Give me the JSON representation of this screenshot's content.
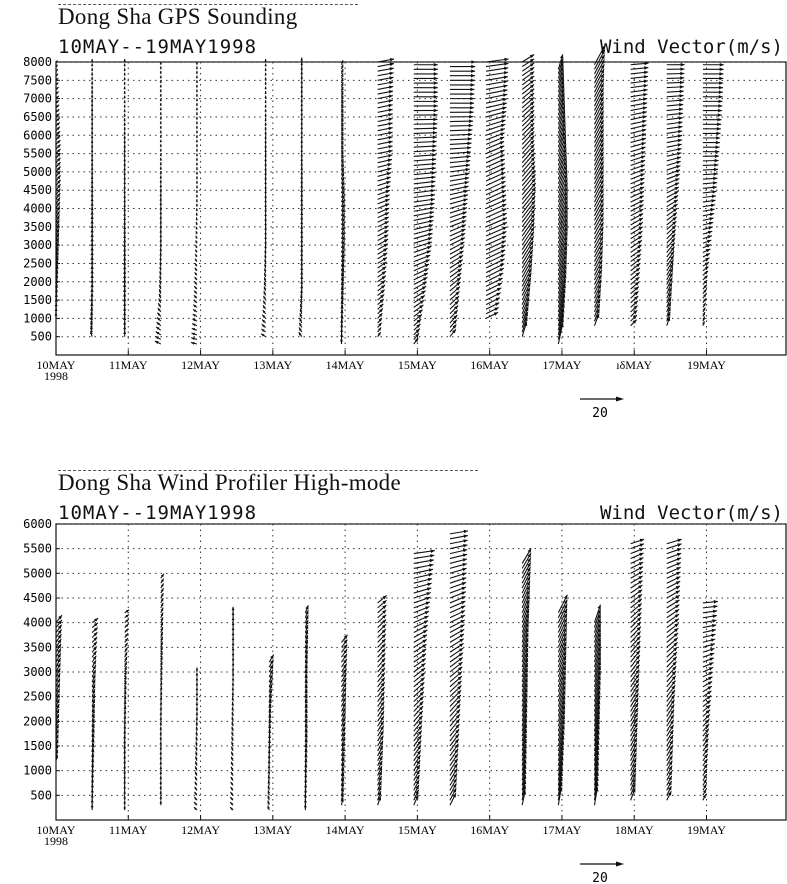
{
  "chart_data": [
    {
      "type": "vector-wind-profile",
      "title": "Dong Sha GPS Sounding",
      "subtitle": "10MAY--19MAY1998",
      "units_label": "Wind Vector(m/s)",
      "ylim": [
        0,
        8000
      ],
      "yticks": [
        "500",
        "1000",
        "1500",
        "2000",
        "2500",
        "3000",
        "3500",
        "4000",
        "4500",
        "5000",
        "5500",
        "6000",
        "6500",
        "7000",
        "7500",
        "8000"
      ],
      "xlim": [
        0,
        10.1
      ],
      "xticks": [
        {
          "day": 0,
          "label": "10MAY",
          "sublabel": "1998"
        },
        {
          "day": 1,
          "label": "11MAY"
        },
        {
          "day": 2,
          "label": "12MAY"
        },
        {
          "day": 3,
          "label": "13MAY"
        },
        {
          "day": 4,
          "label": "14MAY"
        },
        {
          "day": 5,
          "label": "15MAY"
        },
        {
          "day": 6,
          "label": "16MAY"
        },
        {
          "day": 7,
          "label": "17MAY"
        },
        {
          "day": 8,
          "label": "ıδMAY"
        },
        {
          "day": 9,
          "label": "19MAY"
        }
      ],
      "reference_vector": {
        "label": "20",
        "speed": 20
      },
      "profiles": [
        {
          "t": 0.0,
          "zmin": 1000,
          "zmax": 8000,
          "u": [
            0,
            1,
            2,
            3,
            3,
            2,
            1
          ],
          "v": [
            4,
            5,
            5,
            4,
            3,
            2,
            1
          ]
        },
        {
          "t": 0.5,
          "zmin": 500,
          "zmax": 8000,
          "u": [
            -1,
            0,
            0,
            0,
            0,
            0,
            0
          ],
          "v": [
            4,
            5,
            5,
            4,
            3,
            3,
            2
          ]
        },
        {
          "t": 0.95,
          "zmin": 500,
          "zmax": 8000,
          "u": [
            0,
            0,
            0,
            0,
            0,
            0,
            0
          ],
          "v": [
            4,
            5,
            4,
            3,
            3,
            2,
            2
          ]
        },
        {
          "t": 1.45,
          "zmin": 300,
          "zmax": 8000,
          "u": [
            -4,
            -1,
            0,
            0,
            0,
            0,
            0
          ],
          "v": [
            2,
            3,
            3,
            3,
            2,
            2,
            2
          ]
        },
        {
          "t": 1.95,
          "zmin": 300,
          "zmax": 8000,
          "u": [
            -4,
            -2,
            -1,
            0,
            0,
            0,
            0
          ],
          "v": [
            1,
            2,
            2,
            2,
            2,
            2,
            2
          ]
        },
        {
          "t": 2.9,
          "zmin": 500,
          "zmax": 8000,
          "u": [
            -3,
            -1,
            0,
            0,
            0,
            0,
            0
          ],
          "v": [
            2,
            3,
            3,
            3,
            3,
            2,
            2
          ]
        },
        {
          "t": 3.4,
          "zmin": 500,
          "zmax": 8000,
          "u": [
            -2,
            0,
            0,
            0,
            0,
            0,
            0
          ],
          "v": [
            3,
            4,
            4,
            4,
            3,
            3,
            3
          ]
        },
        {
          "t": 3.95,
          "zmin": 300,
          "zmax": 8000,
          "u": [
            0,
            1,
            2,
            2,
            1,
            1,
            1
          ],
          "v": [
            4,
            5,
            5,
            5,
            4,
            4,
            3
          ]
        },
        {
          "t": 4.45,
          "zmin": 500,
          "zmax": 8000,
          "u": [
            2,
            5,
            7,
            8,
            10,
            10,
            11
          ],
          "v": [
            3,
            4,
            4,
            3,
            2,
            2,
            2
          ]
        },
        {
          "t": 4.95,
          "zmin": 300,
          "zmax": 8000,
          "u": [
            3,
            8,
            12,
            14,
            15,
            16,
            16
          ],
          "v": [
            4,
            5,
            4,
            2,
            1,
            0,
            0
          ]
        },
        {
          "t": 5.45,
          "zmin": 500,
          "zmax": 8000,
          "u": [
            4,
            7,
            10,
            12,
            14,
            16,
            17
          ],
          "v": [
            5,
            6,
            5,
            3,
            1,
            0,
            0
          ]
        },
        {
          "t": 5.95,
          "zmin": 1000,
          "zmax": 8000,
          "u": [
            8,
            12,
            14,
            13,
            12,
            14,
            15
          ],
          "v": [
            4,
            6,
            6,
            6,
            5,
            3,
            2
          ]
        },
        {
          "t": 6.45,
          "zmin": 500,
          "zmax": 8000,
          "u": [
            3,
            6,
            8,
            9,
            8,
            8,
            8
          ],
          "v": [
            10,
            12,
            12,
            11,
            9,
            7,
            5
          ]
        },
        {
          "t": 6.95,
          "zmin": 300,
          "zmax": 7800,
          "u": [
            3,
            5,
            6,
            6,
            5,
            4,
            3
          ],
          "v": [
            14,
            16,
            17,
            16,
            14,
            12,
            10
          ]
        },
        {
          "t": 7.45,
          "zmin": 800,
          "zmax": 8000,
          "u": [
            3,
            5,
            6,
            6,
            6,
            6,
            7
          ],
          "v": [
            8,
            10,
            11,
            12,
            12,
            12,
            13
          ]
        },
        {
          "t": 7.95,
          "zmin": 800,
          "zmax": 8000,
          "u": [
            4,
            6,
            8,
            9,
            10,
            11,
            12
          ],
          "v": [
            4,
            5,
            5,
            4,
            3,
            2,
            1
          ]
        },
        {
          "t": 8.45,
          "zmin": 800,
          "zmax": 8000,
          "u": [
            2,
            4,
            6,
            8,
            10,
            11,
            12
          ],
          "v": [
            6,
            8,
            6,
            4,
            2,
            1,
            0
          ]
        },
        {
          "t": 8.95,
          "zmin": 800,
          "zmax": 8000,
          "u": [
            1,
            3,
            6,
            9,
            11,
            13,
            14
          ],
          "v": [
            3,
            3,
            2,
            1,
            0,
            0,
            0
          ]
        }
      ]
    },
    {
      "type": "vector-wind-profile",
      "title": "Dong Sha Wind Profiler High-mode",
      "subtitle": "10MAY--19MAY1998",
      "units_label": "Wind Vector(m/s)",
      "ylim": [
        0,
        6000
      ],
      "yticks": [
        "500",
        "1000",
        "1500",
        "2000",
        "2500",
        "3000",
        "3500",
        "4000",
        "4500",
        "5000",
        "5500",
        "6000"
      ],
      "xlim": [
        0,
        10.1
      ],
      "xticks": [
        {
          "day": 0,
          "label": "10MAY",
          "sublabel": "1998"
        },
        {
          "day": 1,
          "label": "11MAY"
        },
        {
          "day": 2,
          "label": "12MAY"
        },
        {
          "day": 3,
          "label": "13MAY"
        },
        {
          "day": 4,
          "label": "14MAY"
        },
        {
          "day": 5,
          "label": "15MAY"
        },
        {
          "day": 6,
          "label": "16MAY"
        },
        {
          "day": 7,
          "label": "17MAY"
        },
        {
          "day": 8,
          "label": "18MAY"
        },
        {
          "day": 9,
          "label": "19MAY"
        }
      ],
      "reference_vector": {
        "label": "20",
        "speed": 20
      },
      "profiles": [
        {
          "t": 0.0,
          "zmin": 1200,
          "zmax": 4000,
          "u": [
            1,
            2,
            3,
            4
          ],
          "v": [
            4,
            5,
            6,
            5
          ]
        },
        {
          "t": 0.5,
          "zmin": 200,
          "zmax": 4000,
          "u": [
            0,
            1,
            2,
            4
          ],
          "v": [
            4,
            5,
            5,
            3
          ]
        },
        {
          "t": 0.95,
          "zmin": 200,
          "zmax": 4200,
          "u": [
            0,
            0,
            1,
            3
          ],
          "v": [
            3,
            4,
            4,
            2
          ]
        },
        {
          "t": 1.45,
          "zmin": 300,
          "zmax": 4900,
          "u": [
            0,
            0,
            1,
            2
          ],
          "v": [
            3,
            3,
            4,
            3
          ]
        },
        {
          "t": 1.95,
          "zmin": 200,
          "zmax": 3000,
          "u": [
            -2,
            -1,
            0,
            0
          ],
          "v": [
            2,
            3,
            3,
            3
          ]
        },
        {
          "t": 2.45,
          "zmin": 200,
          "zmax": 4200,
          "u": [
            -2,
            -1,
            0,
            0
          ],
          "v": [
            2,
            3,
            3,
            4
          ]
        },
        {
          "t": 2.95,
          "zmin": 200,
          "zmax": 3200,
          "u": [
            -1,
            0,
            1,
            3
          ],
          "v": [
            3,
            4,
            5,
            5
          ]
        },
        {
          "t": 3.45,
          "zmin": 200,
          "zmax": 4200,
          "u": [
            0,
            1,
            1,
            2
          ],
          "v": [
            4,
            5,
            5,
            5
          ]
        },
        {
          "t": 3.95,
          "zmin": 300,
          "zmax": 3600,
          "u": [
            1,
            2,
            3,
            4
          ],
          "v": [
            5,
            6,
            6,
            5
          ]
        },
        {
          "t": 4.45,
          "zmin": 300,
          "zmax": 4400,
          "u": [
            2,
            4,
            5,
            6
          ],
          "v": [
            6,
            7,
            6,
            5
          ]
        },
        {
          "t": 4.95,
          "zmin": 300,
          "zmax": 5400,
          "u": [
            3,
            6,
            9,
            14
          ],
          "v": [
            7,
            7,
            5,
            2
          ]
        },
        {
          "t": 5.45,
          "zmin": 300,
          "zmax": 5800,
          "u": [
            4,
            7,
            10,
            12
          ],
          "v": [
            8,
            8,
            5,
            2
          ]
        },
        {
          "t": 6.45,
          "zmin": 300,
          "zmax": 5200,
          "u": [
            2,
            3,
            4,
            6
          ],
          "v": [
            10,
            12,
            13,
            10
          ]
        },
        {
          "t": 6.95,
          "zmin": 300,
          "zmax": 4200,
          "u": [
            2,
            4,
            5,
            6
          ],
          "v": [
            12,
            14,
            14,
            12
          ]
        },
        {
          "t": 7.45,
          "zmin": 300,
          "zmax": 4000,
          "u": [
            2,
            3,
            4,
            4
          ],
          "v": [
            12,
            14,
            14,
            12
          ]
        },
        {
          "t": 7.95,
          "zmin": 400,
          "zmax": 5600,
          "u": [
            3,
            5,
            7,
            9
          ],
          "v": [
            8,
            9,
            7,
            3
          ]
        },
        {
          "t": 8.45,
          "zmin": 400,
          "zmax": 5600,
          "u": [
            3,
            5,
            8,
            10
          ],
          "v": [
            6,
            8,
            6,
            3
          ]
        },
        {
          "t": 8.95,
          "zmin": 400,
          "zmax": 4400,
          "u": [
            2,
            4,
            7,
            10
          ],
          "v": [
            4,
            5,
            3,
            1
          ]
        }
      ]
    }
  ]
}
